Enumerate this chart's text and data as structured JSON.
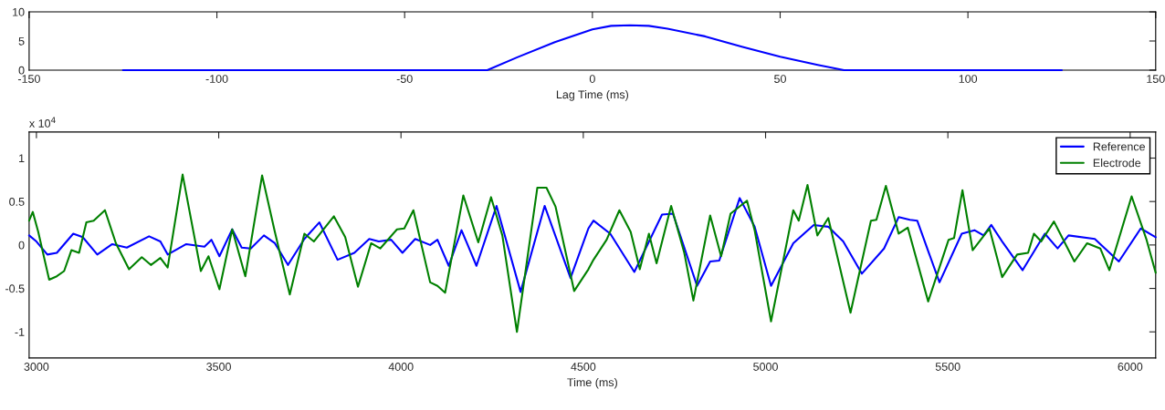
{
  "chart_data": [
    {
      "type": "line",
      "xlabel": "Lag Time (ms)",
      "xlim": [
        -150,
        150
      ],
      "ylim": [
        0,
        10
      ],
      "xticks": [
        -150,
        -100,
        -50,
        0,
        50,
        100,
        150
      ],
      "yticks": [
        0,
        5,
        10
      ],
      "grid": false,
      "legend": false,
      "series": [
        {
          "color": "#0000ff",
          "x": [
            -125,
            -28,
            -20,
            -10,
            0,
            5,
            10,
            15,
            20,
            30,
            40,
            50,
            60,
            67,
            125
          ],
          "values": [
            0,
            0,
            2.2,
            4.8,
            7.0,
            7.6,
            7.7,
            7.6,
            7.1,
            5.8,
            4.0,
            2.3,
            0.9,
            0,
            0
          ]
        }
      ]
    },
    {
      "type": "line",
      "xlabel": "Time (ms)",
      "xlim": [
        2980,
        6070
      ],
      "ylim": [
        -1.3,
        1.3
      ],
      "xticks": [
        3000,
        3500,
        4000,
        4500,
        5000,
        5500,
        6000
      ],
      "yticks": [
        -1,
        -0.5,
        0,
        0.5,
        1
      ],
      "grid": false,
      "legend": "top right",
      "annotations": [
        "x 10$^{4}$"
      ],
      "series": [
        {
          "name": "Reference",
          "color": "#0000ff",
          "x": [
            2980,
            3000,
            3030,
            3056,
            3101,
            3127,
            3167,
            3208,
            3248,
            3309,
            3340,
            3360,
            3411,
            3461,
            3480,
            3502,
            3537,
            3563,
            3588,
            3624,
            3654,
            3690,
            3735,
            3776,
            3826,
            3872,
            3913,
            3939,
            3973,
            4004,
            4039,
            4080,
            4100,
            4131,
            4166,
            4207,
            4262,
            4328,
            4394,
            4465,
            4514,
            4528,
            4574,
            4640,
            4716,
            4746,
            4812,
            4848,
            4873,
            4929,
            4970,
            5015,
            5076,
            5132,
            5172,
            5213,
            5264,
            5325,
            5365,
            5396,
            5416,
            5477,
            5538,
            5573,
            5598,
            5619,
            5649,
            5705,
            5766,
            5801,
            5831,
            5903,
            5969,
            6029,
            6070
          ],
          "values": [
            0.11,
            0.04,
            -0.11,
            -0.09,
            0.13,
            0.09,
            -0.11,
            0.01,
            -0.03,
            0.1,
            0.04,
            -0.11,
            0.01,
            -0.02,
            0.06,
            -0.13,
            0.18,
            -0.03,
            -0.04,
            0.11,
            0.02,
            -0.23,
            0.07,
            0.26,
            -0.17,
            -0.09,
            0.07,
            0.04,
            0.06,
            -0.09,
            0.07,
            0,
            0.06,
            -0.24,
            0.17,
            -0.24,
            0.45,
            -0.54,
            0.45,
            -0.38,
            0.19,
            0.28,
            0.13,
            -0.31,
            0.35,
            0.36,
            -0.47,
            -0.19,
            -0.18,
            0.54,
            0.21,
            -0.47,
            0.02,
            0.23,
            0.21,
            0.04,
            -0.33,
            -0.04,
            0.32,
            0.29,
            0.28,
            -0.43,
            0.13,
            0.17,
            0.11,
            0.23,
            0.04,
            -0.29,
            0.13,
            -0.04,
            0.11,
            0.07,
            -0.19,
            0.19,
            0.09
          ]
        },
        {
          "name": "Electrode",
          "color": "#008000",
          "x": [
            2980,
            2990,
            3005,
            3035,
            3056,
            3076,
            3096,
            3117,
            3137,
            3157,
            3188,
            3218,
            3254,
            3289,
            3314,
            3340,
            3360,
            3401,
            3451,
            3472,
            3502,
            3537,
            3573,
            3619,
            3654,
            3695,
            3735,
            3761,
            3816,
            3847,
            3882,
            3918,
            3943,
            3989,
            4009,
            4034,
            4080,
            4100,
            4121,
            4171,
            4212,
            4247,
            4278,
            4318,
            4374,
            4399,
            4424,
            4475,
            4514,
            4528,
            4564,
            4599,
            4630,
            4655,
            4680,
            4701,
            4741,
            4777,
            4802,
            4848,
            4878,
            4904,
            4949,
            4970,
            5015,
            5076,
            5091,
            5115,
            5142,
            5172,
            5233,
            5289,
            5304,
            5330,
            5365,
            5390,
            5446,
            5502,
            5517,
            5540,
            5568,
            5614,
            5649,
            5690,
            5720,
            5736,
            5756,
            5791,
            5847,
            5882,
            5918,
            5943,
            6004,
            6045,
            6070
          ],
          "values": [
            0.28,
            0.38,
            0.15,
            -0.4,
            -0.36,
            -0.3,
            -0.06,
            -0.09,
            0.26,
            0.28,
            0.4,
            0.02,
            -0.28,
            -0.14,
            -0.23,
            -0.15,
            -0.26,
            0.81,
            -0.3,
            -0.13,
            -0.51,
            0.18,
            -0.36,
            0.8,
            0.15,
            -0.57,
            0.13,
            0.04,
            0.33,
            0.09,
            -0.48,
            0.02,
            -0.04,
            0.18,
            0.19,
            0.4,
            -0.43,
            -0.47,
            -0.55,
            0.57,
            0.03,
            0.55,
            0.11,
            -1.0,
            0.66,
            0.66,
            0.44,
            -0.53,
            -0.28,
            -0.17,
            0.06,
            0.4,
            0.15,
            -0.28,
            0.13,
            -0.21,
            0.45,
            -0.09,
            -0.64,
            0.34,
            -0.13,
            0.36,
            0.51,
            0.17,
            -0.88,
            0.4,
            0.28,
            0.69,
            0.11,
            0.31,
            -0.78,
            0.28,
            0.29,
            0.68,
            0.13,
            0.2,
            -0.65,
            0.06,
            0.08,
            0.63,
            -0.06,
            0.19,
            -0.37,
            -0.11,
            -0.09,
            0.13,
            0.04,
            0.27,
            -0.19,
            0.02,
            -0.04,
            -0.29,
            0.56,
            0.06,
            -0.32
          ]
        }
      ]
    }
  ]
}
